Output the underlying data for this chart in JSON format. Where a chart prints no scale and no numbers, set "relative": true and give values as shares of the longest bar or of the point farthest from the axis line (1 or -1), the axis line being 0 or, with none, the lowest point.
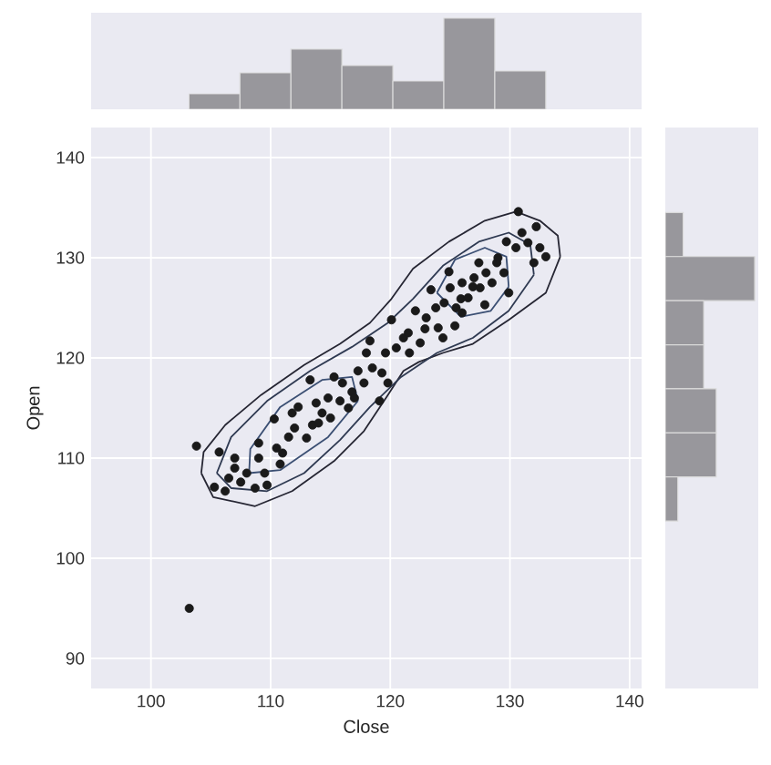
{
  "chart_data": [
    {
      "type": "bar",
      "relative": true,
      "categories": [
        null,
        null,
        null,
        null,
        null,
        null,
        null
      ],
      "values": [
        0.17,
        0.4,
        0.66,
        0.48,
        0.31,
        1.0,
        0.42
      ],
      "color": "#98979c"
    },
    {
      "type": "scatter",
      "xlabel": "Close",
      "ylabel": "Open",
      "xlim": [
        95,
        141
      ],
      "ylim": [
        87,
        143
      ],
      "xticks": [
        100,
        110,
        120,
        130,
        140
      ],
      "yticks": [
        90,
        100,
        110,
        120,
        130,
        140
      ],
      "grid": true,
      "series": [
        {
          "type": "scatter",
          "marker": "circle",
          "color": "#1a1a1a",
          "x": [
            103.8,
            103.2,
            105.7,
            105.3,
            106.2,
            107.0,
            107.5,
            108.7,
            109.7,
            109.0,
            110.3,
            110.8,
            111.5,
            112.3,
            113.3,
            113.5,
            114.3,
            115.3,
            115.8,
            116.8,
            117.3,
            118.3,
            119.1,
            119.8,
            119.6,
            120.1,
            121.1,
            121.6,
            122.1,
            122.9,
            123.4,
            124.4,
            124.9,
            125.4,
            125.9,
            126.9,
            127.4,
            127.9,
            128.9,
            129.7,
            129.9,
            130.7,
            131.0,
            132.2,
            132.5,
            133.0,
            132.0,
            108.0,
            109.0,
            110.5,
            111.0,
            112.0,
            113.0,
            113.8,
            114.8,
            115.0,
            116.0,
            116.5,
            117.8,
            118.5,
            119.3,
            120.5,
            121.5,
            122.5,
            123.0,
            123.8,
            124.5,
            125.0,
            125.5,
            126.0,
            126.5,
            127.0,
            127.5,
            128.0,
            128.5,
            129.0,
            129.5,
            130.5,
            131.5,
            126.0,
            124.0,
            107.0,
            106.5,
            109.5,
            111.8,
            114.0,
            117.0,
            118.0
          ],
          "values": [
            111.2,
            95.0,
            110.6,
            107.1,
            106.7,
            110.0,
            107.6,
            107.0,
            107.3,
            111.5,
            113.9,
            109.4,
            112.1,
            115.1,
            117.8,
            113.3,
            114.5,
            118.1,
            115.7,
            116.6,
            118.7,
            121.7,
            115.7,
            117.5,
            120.5,
            123.8,
            122.0,
            120.5,
            124.7,
            122.9,
            126.8,
            122.0,
            128.6,
            123.2,
            125.9,
            127.1,
            129.5,
            125.3,
            129.5,
            131.6,
            126.5,
            134.6,
            132.5,
            133.1,
            131.0,
            130.1,
            129.5,
            108.5,
            110.0,
            111.0,
            110.5,
            113.0,
            112.0,
            115.5,
            116.0,
            114.0,
            117.5,
            115.0,
            117.5,
            119.0,
            118.5,
            121.0,
            122.5,
            121.5,
            124.0,
            125.0,
            125.5,
            127.0,
            125.0,
            127.5,
            126.0,
            128.0,
            127.0,
            128.5,
            127.5,
            130.0,
            128.5,
            131.0,
            131.5,
            124.5,
            123.0,
            109.0,
            108.0,
            108.5,
            114.5,
            113.5,
            116.0,
            120.5
          ]
        },
        {
          "type": "line",
          "marker": "none",
          "color": "#262633",
          "x": [
            104.2,
            105.2,
            108.7,
            111.8,
            115.3,
            117.8,
            119.8,
            121.1,
            122.4,
            124.4,
            126.9,
            129.9,
            133.0,
            134.2
          ],
          "values": [
            108.5,
            106.1,
            105.2,
            106.7,
            109.7,
            112.7,
            116.3,
            118.7,
            119.6,
            120.5,
            121.4,
            123.8,
            126.5,
            130.1
          ]
        },
        {
          "type": "line",
          "marker": "none",
          "color": "#262633",
          "x": [
            104.2,
            104.4,
            106.2,
            109.2,
            112.8,
            115.8,
            118.3,
            120.1,
            121.9,
            124.9,
            127.9,
            130.5,
            132.5,
            134.0,
            134.2
          ],
          "values": [
            108.5,
            110.6,
            113.3,
            116.3,
            119.3,
            121.4,
            123.5,
            125.9,
            128.9,
            131.6,
            133.7,
            134.6,
            133.7,
            132.2,
            130.1
          ]
        },
        {
          "type": "line",
          "marker": "none",
          "color": "#2f3a52",
          "x": [
            105.5,
            106.7,
            109.7,
            112.8,
            115.8,
            118.3,
            120.9,
            123.9,
            126.9,
            129.9,
            132.0
          ],
          "values": [
            108.5,
            107.0,
            106.7,
            108.5,
            111.8,
            115.1,
            118.1,
            120.5,
            122.0,
            124.7,
            128.3
          ]
        },
        {
          "type": "line",
          "marker": "none",
          "color": "#2f3a52",
          "x": [
            105.5,
            106.7,
            109.7,
            113.3,
            116.8,
            119.8,
            121.9,
            124.4,
            127.4,
            129.9,
            131.7,
            132.0
          ],
          "values": [
            108.5,
            112.1,
            115.7,
            118.7,
            121.1,
            123.5,
            125.9,
            129.2,
            131.6,
            132.5,
            131.3,
            128.3
          ]
        },
        {
          "type": "line",
          "marker": "none",
          "color": "#3b4f73",
          "x": [
            123.9,
            125.9,
            128.4,
            129.9
          ],
          "values": [
            126.5,
            124.1,
            124.7,
            127.1
          ]
        },
        {
          "type": "line",
          "marker": "none",
          "color": "#3b4f73",
          "x": [
            123.9,
            125.4,
            127.9,
            129.7,
            129.9
          ],
          "values": [
            126.5,
            129.8,
            131.0,
            130.1,
            127.1
          ]
        },
        {
          "type": "line",
          "marker": "none",
          "color": "#3b4f73",
          "x": [
            108.2,
            110.8,
            114.8,
            117.3
          ],
          "values": [
            108.5,
            108.8,
            112.1,
            115.7
          ]
        },
        {
          "type": "line",
          "marker": "none",
          "color": "#3b4f73",
          "x": [
            108.2,
            108.3,
            110.8,
            114.3,
            116.8,
            117.3
          ],
          "values": [
            108.5,
            110.9,
            115.1,
            117.8,
            118.1,
            115.7
          ]
        }
      ]
    },
    {
      "type": "bar",
      "orientation": "horizontal",
      "relative": true,
      "categories": [
        null,
        null,
        null,
        null,
        null,
        null,
        null
      ],
      "values": [
        0.2,
        1.0,
        0.43,
        0.43,
        0.57,
        0.57,
        0.14
      ],
      "color": "#98979c"
    }
  ]
}
